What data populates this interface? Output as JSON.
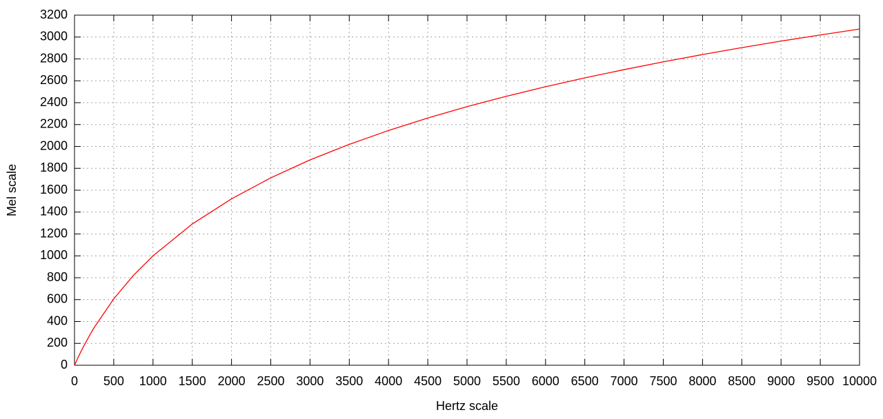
{
  "chart_data": {
    "type": "line",
    "xlabel": "Hertz scale",
    "ylabel": "Mel scale",
    "x": [
      0,
      50,
      100,
      200,
      250,
      500,
      750,
      1000,
      1500,
      2000,
      2500,
      3000,
      3500,
      4000,
      4500,
      5000,
      5500,
      6000,
      6500,
      7000,
      7500,
      8000,
      8500,
      9000,
      9500,
      10000
    ],
    "series": [
      {
        "color": "#ff0000",
        "values": [
          0,
          78,
          151,
          283,
          344,
          607,
          821,
          1000,
          1291,
          1521,
          1713,
          1877,
          2019,
          2146,
          2260,
          2364,
          2458,
          2546,
          2627,
          2702,
          2773,
          2840,
          2903,
          2963,
          3019,
          3073
        ]
      }
    ],
    "xlim": [
      0,
      10000
    ],
    "xticks": [
      0,
      500,
      1000,
      1500,
      2000,
      2500,
      3000,
      3500,
      4000,
      4500,
      5000,
      5500,
      6000,
      6500,
      7000,
      7500,
      8000,
      8500,
      9000,
      9500,
      10000
    ],
    "ylim": [
      0,
      3200
    ],
    "yticks": [
      0,
      200,
      400,
      600,
      800,
      1000,
      1200,
      1400,
      1600,
      1800,
      2000,
      2200,
      2400,
      2600,
      2800,
      3000,
      3200
    ],
    "grid": true
  }
}
